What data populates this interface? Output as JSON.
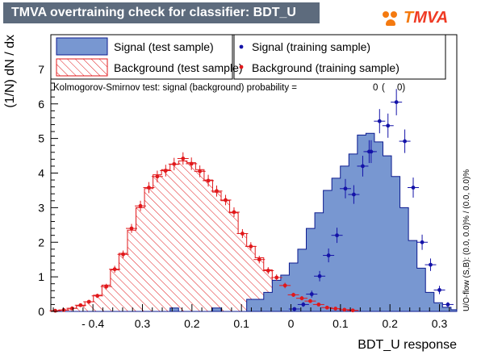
{
  "window": {
    "title": "TMVA overtraining check for classifier: BDT_U",
    "logo_text_1": "T",
    "logo_text_2": "MVA"
  },
  "chart_data": {
    "type": "histogram",
    "xlabel": "BDT_U response",
    "ylabel": "(1/N) dN / dx",
    "xlim": [
      -0.485,
      0.335
    ],
    "ylim": [
      0,
      8
    ],
    "x_ticks": [
      {
        "v": -0.4,
        "label": "- 0.4"
      },
      {
        "v": -0.3,
        "label": "0.3"
      },
      {
        "v": -0.2,
        "label": "0.2"
      },
      {
        "v": -0.1,
        "label": "0.1"
      },
      {
        "v": 0.0,
        "label": "0"
      },
      {
        "v": 0.1,
        "label": "0.1"
      },
      {
        "v": 0.2,
        "label": "0.2"
      },
      {
        "v": 0.3,
        "label": "0.3"
      }
    ],
    "y_ticks": [
      0,
      1,
      2,
      3,
      4,
      5,
      6,
      7
    ],
    "bin_edges": [
      -0.485,
      -0.4678,
      -0.4506,
      -0.4334,
      -0.4162,
      -0.399,
      -0.3818,
      -0.3646,
      -0.3474,
      -0.3302,
      -0.313,
      -0.2958,
      -0.2786,
      -0.2614,
      -0.2442,
      -0.227,
      -0.2098,
      -0.1926,
      -0.1754,
      -0.1582,
      -0.141,
      -0.1238,
      -0.1066,
      -0.0894,
      -0.0722,
      -0.055,
      -0.0378,
      -0.0206,
      -0.0034,
      0.0138,
      0.031,
      0.0482,
      0.0654,
      0.0826,
      0.0998,
      0.117,
      0.1342,
      0.1514,
      0.1686,
      0.1858,
      0.203,
      0.2202,
      0.2374,
      0.2546,
      0.2718,
      0.289,
      0.3062,
      0.3234,
      0.335
    ],
    "signal_test": [
      0,
      0,
      0,
      0,
      0,
      0,
      0,
      0,
      0,
      0,
      0,
      0,
      0,
      0,
      0.1,
      0,
      0,
      0,
      0,
      0.1,
      0,
      0,
      0,
      0.35,
      0.35,
      0.55,
      0.9,
      1.05,
      1.4,
      1.8,
      2.4,
      2.85,
      3.5,
      3.85,
      4.2,
      4.55,
      5.1,
      5.15,
      4.9,
      4.5,
      3.9,
      3.0,
      2.05,
      1.25,
      0.55,
      0.25,
      0.12,
      0.05
    ],
    "background_test": [
      0.02,
      0.04,
      0.09,
      0.16,
      0.28,
      0.47,
      0.76,
      1.2,
      1.68,
      2.35,
      3.0,
      3.55,
      3.95,
      4.1,
      4.25,
      4.35,
      4.3,
      4.1,
      3.8,
      3.45,
      3.2,
      2.85,
      2.25,
      1.88,
      1.55,
      1.2,
      0.82,
      0.62,
      0.45,
      0.35,
      0.25,
      0.18,
      0.13,
      0.08,
      0.06,
      0.04,
      0.02,
      0.01,
      0.01,
      0,
      0,
      0,
      0,
      0,
      0,
      0,
      0,
      0
    ],
    "signal_training": [
      {
        "x": 0.007,
        "y": 0.07,
        "err": 0.05
      },
      {
        "x": 0.025,
        "y": 0.2,
        "err": 0.07
      },
      {
        "x": 0.042,
        "y": 0.5,
        "err": 0.1
      },
      {
        "x": 0.058,
        "y": 1.02,
        "err": 0.15
      },
      {
        "x": 0.076,
        "y": 1.62,
        "err": 0.2
      },
      {
        "x": 0.093,
        "y": 2.2,
        "err": 0.22
      },
      {
        "x": 0.11,
        "y": 3.55,
        "err": 0.28
      },
      {
        "x": 0.127,
        "y": 3.38,
        "err": 0.27
      },
      {
        "x": 0.145,
        "y": 4.2,
        "err": 0.3
      },
      {
        "x": 0.162,
        "y": 4.62,
        "err": 0.33
      },
      {
        "x": 0.179,
        "y": 5.5,
        "err": 0.35
      },
      {
        "x": 0.196,
        "y": 5.37,
        "err": 0.35
      },
      {
        "x": 0.213,
        "y": 6.05,
        "err": 0.38
      },
      {
        "x": 0.23,
        "y": 4.92,
        "err": 0.34
      },
      {
        "x": 0.247,
        "y": 3.58,
        "err": 0.29
      },
      {
        "x": 0.265,
        "y": 2.0,
        "err": 0.22
      },
      {
        "x": 0.282,
        "y": 1.35,
        "err": 0.18
      },
      {
        "x": 0.3,
        "y": 0.62,
        "err": 0.12
      },
      {
        "x": 0.317,
        "y": 0.2,
        "err": 0.07
      },
      {
        "x": 0.158,
        "y": 4.62,
        "err": 0.33
      }
    ],
    "background_training": [
      {
        "x": -0.476,
        "y": 0.02,
        "err": 0.01
      },
      {
        "x": -0.459,
        "y": 0.04,
        "err": 0.02
      },
      {
        "x": -0.442,
        "y": 0.09,
        "err": 0.03
      },
      {
        "x": -0.425,
        "y": 0.18,
        "err": 0.04
      },
      {
        "x": -0.408,
        "y": 0.28,
        "err": 0.05
      },
      {
        "x": -0.391,
        "y": 0.45,
        "err": 0.06
      },
      {
        "x": -0.373,
        "y": 0.72,
        "err": 0.08
      },
      {
        "x": -0.356,
        "y": 1.22,
        "err": 0.1
      },
      {
        "x": -0.339,
        "y": 1.65,
        "err": 0.11
      },
      {
        "x": -0.322,
        "y": 2.4,
        "err": 0.13
      },
      {
        "x": -0.304,
        "y": 3.05,
        "err": 0.15
      },
      {
        "x": -0.287,
        "y": 3.58,
        "err": 0.16
      },
      {
        "x": -0.27,
        "y": 3.9,
        "err": 0.17
      },
      {
        "x": -0.253,
        "y": 4.07,
        "err": 0.17
      },
      {
        "x": -0.236,
        "y": 4.26,
        "err": 0.18
      },
      {
        "x": -0.218,
        "y": 4.42,
        "err": 0.18
      },
      {
        "x": -0.201,
        "y": 4.27,
        "err": 0.18
      },
      {
        "x": -0.184,
        "y": 4.05,
        "err": 0.17
      },
      {
        "x": -0.167,
        "y": 3.78,
        "err": 0.17
      },
      {
        "x": -0.15,
        "y": 3.48,
        "err": 0.16
      },
      {
        "x": -0.132,
        "y": 3.22,
        "err": 0.15
      },
      {
        "x": -0.115,
        "y": 2.87,
        "err": 0.14
      },
      {
        "x": -0.098,
        "y": 2.25,
        "err": 0.13
      },
      {
        "x": -0.081,
        "y": 1.88,
        "err": 0.12
      },
      {
        "x": -0.064,
        "y": 1.5,
        "err": 0.11
      },
      {
        "x": -0.046,
        "y": 1.18,
        "err": 0.1
      },
      {
        "x": -0.029,
        "y": 0.98,
        "err": 0.09
      },
      {
        "x": -0.012,
        "y": 0.75,
        "err": 0.08
      },
      {
        "x": 0.005,
        "y": 0.48,
        "err": 0.06
      },
      {
        "x": 0.022,
        "y": 0.38,
        "err": 0.06
      },
      {
        "x": 0.039,
        "y": 0.3,
        "err": 0.05
      },
      {
        "x": 0.056,
        "y": 0.2,
        "err": 0.04
      },
      {
        "x": 0.073,
        "y": 0.11,
        "err": 0.03
      },
      {
        "x": 0.09,
        "y": 0.08,
        "err": 0.03
      },
      {
        "x": 0.108,
        "y": 0.05,
        "err": 0.02
      },
      {
        "x": 0.125,
        "y": 0.03,
        "err": 0.02
      }
    ],
    "legend": {
      "signal_test": "Signal (test sample)",
      "background_test": "Background (test sample)",
      "signal_training": "Signal (training sample)",
      "background_training": "Background (training sample)"
    },
    "ks_text": "Kolmogorov-Smirnov test: signal (background) probability =",
    "ks_signal": "0",
    "ks_paren_open": "(",
    "ks_background": "0)",
    "overflow_text": "U/O-flow (S,B): (0.0, 0.0)% / (0.0, 0.0)%",
    "colors": {
      "signal_fill": "#7897d1",
      "signal_line": "#0b1a8f",
      "background_line": "#e1181b",
      "signal_marker": "#1413a8",
      "background_marker": "#e1181b",
      "title_bg": "#5d6b7d"
    }
  }
}
